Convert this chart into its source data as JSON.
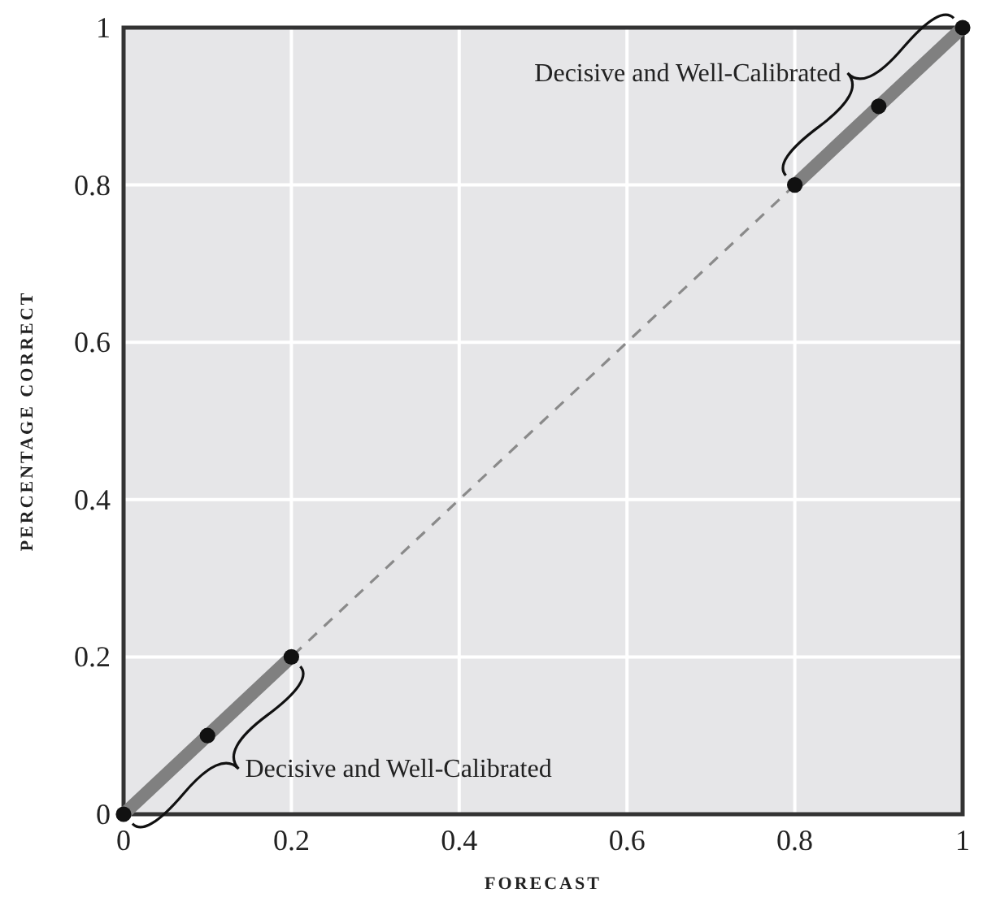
{
  "chart_data": {
    "type": "line",
    "xlabel": "FORECAST",
    "ylabel": "PERCENTAGE CORRECT",
    "xlim": [
      0,
      1
    ],
    "ylim": [
      0,
      1
    ],
    "xticks": [
      0,
      0.2,
      0.4,
      0.6,
      0.8,
      1
    ],
    "yticks": [
      0,
      0.2,
      0.4,
      0.6,
      0.8,
      1
    ],
    "grid": true,
    "series": [
      {
        "type": "line",
        "line_style": "dashed",
        "color": "#8a8a8a",
        "x": [
          0,
          1
        ],
        "values": [
          0,
          1
        ]
      },
      {
        "type": "line",
        "line_style": "solid",
        "color": "#808080",
        "x": [
          0,
          0.2
        ],
        "values": [
          0,
          0.2
        ]
      },
      {
        "type": "line",
        "line_style": "solid",
        "color": "#808080",
        "x": [
          0.8,
          1
        ],
        "values": [
          0.8,
          1
        ]
      },
      {
        "type": "scatter",
        "marker": "circle",
        "color": "#111111",
        "x": [
          0,
          0.1,
          0.2,
          0.8,
          0.9,
          1
        ],
        "values": [
          0,
          0.1,
          0.2,
          0.8,
          0.9,
          1
        ]
      }
    ],
    "annotations": [
      {
        "text": "Decisive and Well-Calibrated",
        "x": 0.1,
        "y": 0.1
      },
      {
        "text": "Decisive and Well-Calibrated",
        "x": 0.9,
        "y": 0.9
      }
    ]
  }
}
